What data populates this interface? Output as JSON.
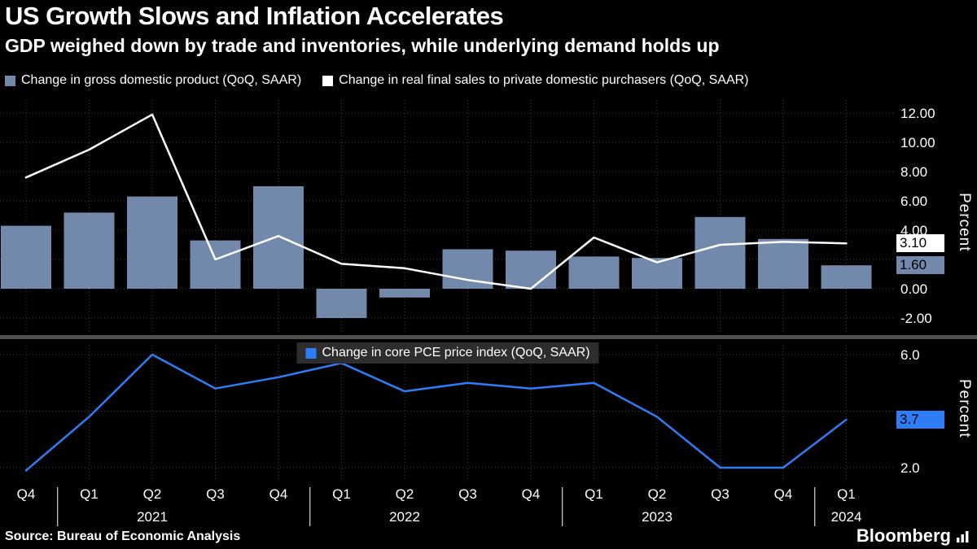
{
  "header": {
    "title": "US Growth Slows and Inflation Accelerates",
    "subtitle": "GDP weighed down by trade and inventories, while underlying demand holds up"
  },
  "colors": {
    "background": "#000000",
    "bar": "#7389ac",
    "white_line": "#ffffff",
    "blue_line": "#2e7df6",
    "grid": "#3f3f3f",
    "separator": "#505050",
    "legend_chip_bg": "#2d2d2d",
    "text": "#ffffff"
  },
  "chart_data": [
    {
      "type": "bar",
      "panel": "top",
      "ylabel": "Percent",
      "ylim": [
        -3,
        12.8
      ],
      "yticks": [
        -2,
        0,
        2,
        4,
        6,
        8,
        10,
        12
      ],
      "ytick_labels": [
        "-2.00",
        "0.00",
        "",
        "4.00",
        "6.00",
        "8.00",
        "10.00",
        "12.00"
      ],
      "grid": "dotted",
      "legend_position": "top-left",
      "categories": [
        "Q4 2020",
        "Q1 2021",
        "Q2 2021",
        "Q3 2021",
        "Q4 2021",
        "Q1 2022",
        "Q2 2022",
        "Q3 2022",
        "Q4 2022",
        "Q1 2023",
        "Q2 2023",
        "Q3 2023",
        "Q4 2023",
        "Q1 2024"
      ],
      "series": [
        {
          "name": "Change in gross domestic product (QoQ, SAAR)",
          "type": "bar",
          "color": "#7389ac",
          "values": [
            4.3,
            5.2,
            6.3,
            3.3,
            7.0,
            -2.0,
            -0.6,
            2.7,
            2.6,
            2.2,
            2.1,
            4.9,
            3.4,
            1.6
          ],
          "end_label": "1.60"
        },
        {
          "name": "Change in real final sales to private domestic purchasers (QoQ, SAAR)",
          "type": "line",
          "color": "#ffffff",
          "values": [
            7.6,
            9.5,
            11.9,
            2.0,
            3.6,
            1.7,
            1.4,
            0.6,
            0.0,
            3.5,
            1.8,
            3.0,
            3.2,
            3.1
          ],
          "end_label": "3.10"
        }
      ]
    },
    {
      "type": "line",
      "panel": "bottom",
      "ylabel": "Percent",
      "ylim": [
        1.3,
        6.4
      ],
      "yticks": [
        2,
        4,
        6
      ],
      "ytick_labels": [
        "2.0",
        "",
        "6.0"
      ],
      "grid": "dotted",
      "legend_position": "top-center",
      "categories": [
        "Q4 2020",
        "Q1 2021",
        "Q2 2021",
        "Q3 2021",
        "Q4 2021",
        "Q1 2022",
        "Q2 2022",
        "Q3 2022",
        "Q4 2022",
        "Q1 2023",
        "Q2 2023",
        "Q3 2023",
        "Q4 2023",
        "Q1 2024"
      ],
      "series": [
        {
          "name": "Change in core PCE price index (QoQ, SAAR)",
          "type": "line",
          "color": "#2e7df6",
          "values": [
            1.9,
            3.8,
            6.0,
            4.8,
            5.2,
            5.7,
            4.7,
            5.0,
            4.8,
            5.0,
            3.8,
            2.0,
            2.0,
            3.7
          ],
          "end_label": "3.7"
        }
      ]
    }
  ],
  "x_axis": {
    "quarters": [
      "Q4",
      "Q1",
      "Q2",
      "Q3",
      "Q4",
      "Q1",
      "Q2",
      "Q3",
      "Q4",
      "Q1",
      "Q2",
      "Q3",
      "Q4",
      "Q1"
    ],
    "years": [
      {
        "label": "2021",
        "center_index": 2
      },
      {
        "label": "2022",
        "center_index": 6
      },
      {
        "label": "2023",
        "center_index": 10
      },
      {
        "label": "2024",
        "center_index": 13
      }
    ],
    "divider_after_indices": [
      0,
      4,
      8,
      12
    ]
  },
  "footer": {
    "source": "Source: Bureau of Economic Analysis",
    "brand": "Bloomberg"
  }
}
